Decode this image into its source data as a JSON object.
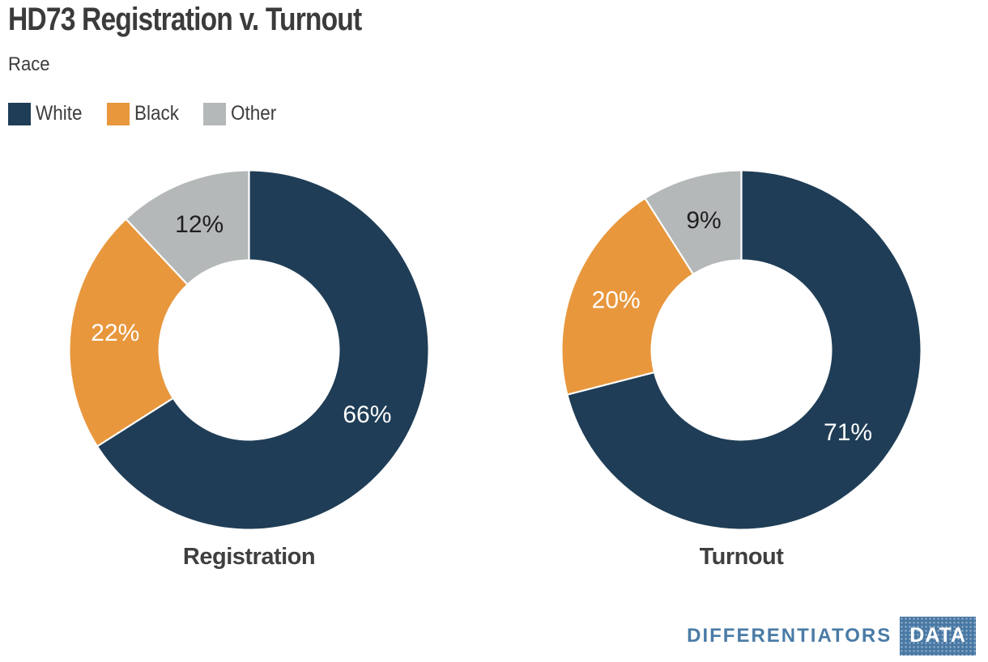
{
  "header": {
    "title": "HD73 Registration v. Turnout",
    "subtitle": "Race"
  },
  "legend": {
    "position": "top-left",
    "items": [
      {
        "label": "White",
        "color": "#1f3d56"
      },
      {
        "label": "Black",
        "color": "#e8973d"
      },
      {
        "label": "Other",
        "color": "#b4b8b9"
      }
    ]
  },
  "chart_data": [
    {
      "type": "pie",
      "donut": true,
      "title": "Registration",
      "categories": [
        "White",
        "Black",
        "Other"
      ],
      "values": [
        66,
        22,
        12
      ],
      "labels": [
        "66%",
        "22%",
        "12%"
      ],
      "colors": [
        "#1f3d56",
        "#e8973d",
        "#b4b8b9"
      ],
      "label_colors": [
        "#ffffff",
        "#ffffff",
        "#1f1f1f"
      ],
      "start_angle_deg": 0,
      "direction": "clockwise",
      "outer_radius": 221,
      "inner_radius": 112,
      "separator_color": "#ffffff"
    },
    {
      "type": "pie",
      "donut": true,
      "title": "Turnout",
      "categories": [
        "White",
        "Black",
        "Other"
      ],
      "values": [
        71,
        20,
        9
      ],
      "labels": [
        "71%",
        "20%",
        "9%"
      ],
      "colors": [
        "#1f3d56",
        "#e8973d",
        "#b4b8b9"
      ],
      "label_colors": [
        "#ffffff",
        "#ffffff",
        "#1f1f1f"
      ],
      "start_angle_deg": 0,
      "direction": "clockwise",
      "outer_radius": 221,
      "inner_radius": 112,
      "separator_color": "#ffffff"
    }
  ],
  "footer": {
    "brand": "DIFFERENTIATORS",
    "brand_box": "DATA",
    "brand_color": "#4a7ba6",
    "brand_box_color": "#4878a4"
  }
}
